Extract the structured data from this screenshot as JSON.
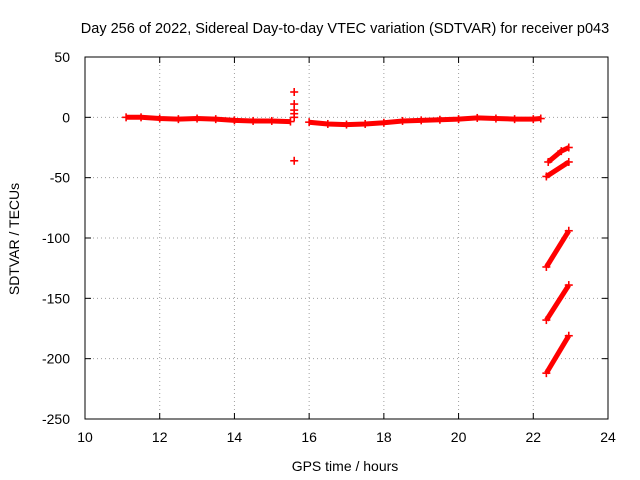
{
  "chart_data": {
    "type": "scatter",
    "title": "Day 256 of 2022, Sidereal Day-to-day VTEC variation (SDTVAR) for receiver p043",
    "xlabel": "GPS time / hours",
    "ylabel": "SDTVAR / TECUs",
    "xlim": [
      10,
      24
    ],
    "ylim": [
      -250,
      50
    ],
    "xticks": [
      "10",
      "12",
      "14",
      "16",
      "18",
      "20",
      "22",
      "24"
    ],
    "yticks": [
      "50",
      "0",
      "-50",
      "-100",
      "-150",
      "-200",
      "-250"
    ],
    "grid": true,
    "legend": "none",
    "series_color": "#ff0000",
    "series": [
      {
        "name": "main-trace-a",
        "points": [
          [
            11.1,
            0
          ],
          [
            11.5,
            0
          ],
          [
            12.0,
            -1
          ],
          [
            12.5,
            -1.5
          ],
          [
            13.0,
            -1
          ],
          [
            13.5,
            -1.5
          ],
          [
            14.0,
            -2.5
          ],
          [
            14.5,
            -3
          ],
          [
            15.0,
            -3
          ],
          [
            15.5,
            -3.5
          ]
        ]
      },
      {
        "name": "main-trace-b",
        "points": [
          [
            16.0,
            -4
          ],
          [
            16.5,
            -5.5
          ],
          [
            17.0,
            -6
          ],
          [
            17.5,
            -5.5
          ],
          [
            18.0,
            -4.5
          ],
          [
            18.5,
            -3
          ],
          [
            19.0,
            -2.5
          ],
          [
            19.5,
            -2
          ],
          [
            20.0,
            -1.5
          ],
          [
            20.5,
            -0.5
          ],
          [
            21.0,
            -1
          ],
          [
            21.5,
            -1.5
          ],
          [
            22.0,
            -1.5
          ],
          [
            22.2,
            -1
          ]
        ]
      },
      {
        "name": "spike-near-15.6",
        "points": [
          [
            15.6,
            21
          ],
          [
            15.6,
            11
          ],
          [
            15.6,
            6
          ],
          [
            15.6,
            3
          ],
          [
            15.6,
            0
          ],
          [
            15.6,
            -36
          ]
        ]
      },
      {
        "name": "late-track-1",
        "points": [
          [
            22.4,
            -37
          ],
          [
            22.75,
            -28
          ],
          [
            22.95,
            -25
          ]
        ]
      },
      {
        "name": "late-track-2",
        "points": [
          [
            22.35,
            -49
          ],
          [
            22.95,
            -37
          ]
        ]
      },
      {
        "name": "late-track-3",
        "points": [
          [
            22.35,
            -124
          ],
          [
            22.95,
            -94
          ]
        ]
      },
      {
        "name": "late-track-4",
        "points": [
          [
            22.35,
            -168
          ],
          [
            22.95,
            -139
          ]
        ]
      },
      {
        "name": "late-track-5",
        "points": [
          [
            22.35,
            -212
          ],
          [
            22.95,
            -181
          ]
        ]
      }
    ]
  }
}
